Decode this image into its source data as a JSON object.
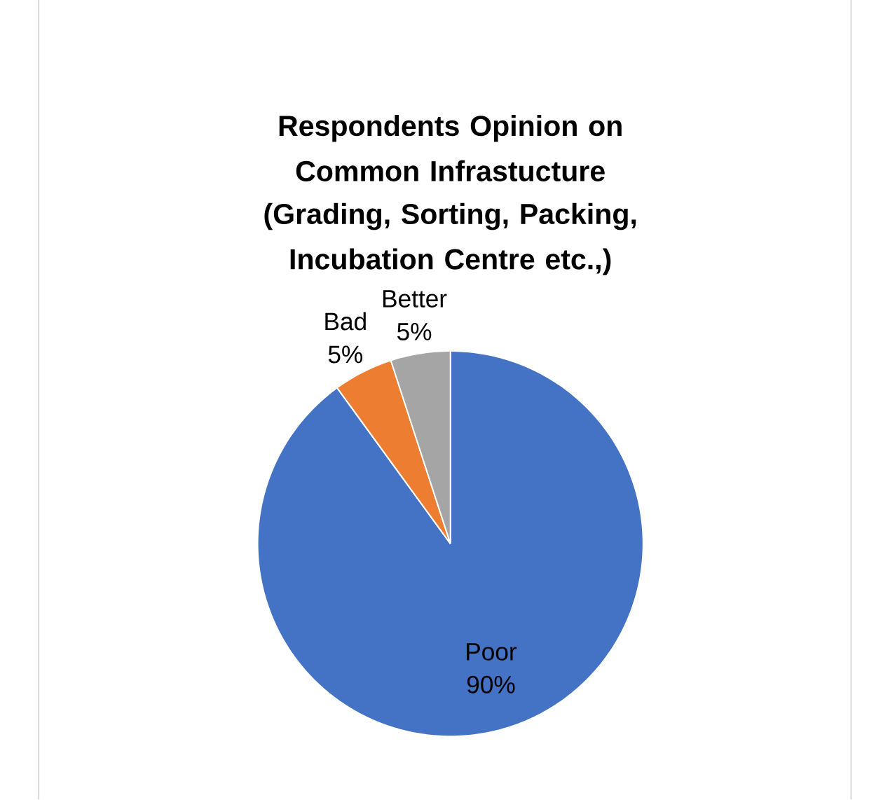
{
  "chart_data": {
    "type": "pie",
    "title": "Respondents Opinion on Common Infrastucture",
    "subtitle": "(Grading, Sorting, Packing, Incubation Centre etc.,)",
    "categories": [
      "Poor",
      "Bad",
      "Better"
    ],
    "values": [
      90,
      5,
      5
    ],
    "value_labels": [
      "90%",
      "5%",
      "5%"
    ],
    "colors": [
      "#4472c4",
      "#ed7d31",
      "#a5a5a5"
    ]
  }
}
